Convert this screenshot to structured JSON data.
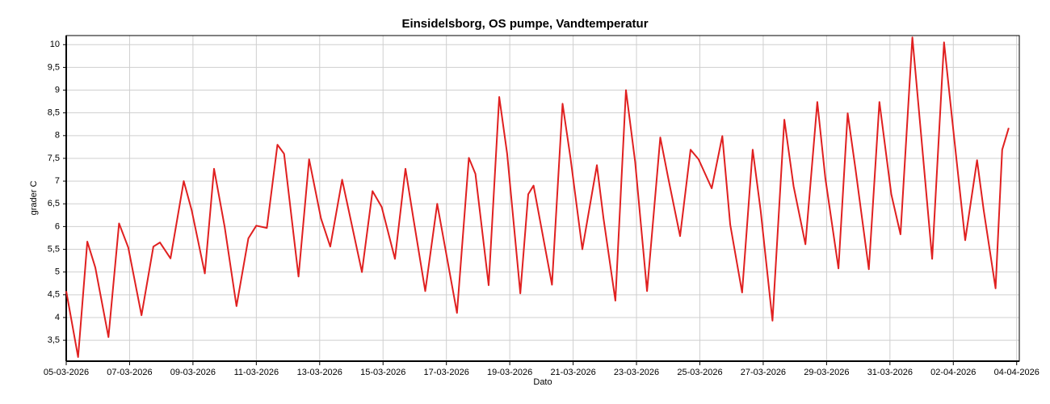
{
  "chart_data": {
    "type": "line",
    "title": "Einsidelsborg, OS pumpe, Vandtemperatur",
    "xlabel": "Dato",
    "ylabel": "grader C",
    "color": "#e02020",
    "grid": true,
    "x": [
      "2026-03-05T00:00",
      "2026-03-05T09:00",
      "2026-03-05T16:00",
      "2026-03-05T22:00",
      "2026-03-06T08:00",
      "2026-03-06T16:00",
      "2026-03-06T23:00",
      "2026-03-07T09:00",
      "2026-03-07T18:00",
      "2026-03-07T23:00",
      "2026-03-08T07:00",
      "2026-03-08T17:00",
      "2026-03-08T23:00",
      "2026-03-09T09:00",
      "2026-03-09T16:00",
      "2026-03-10T00:00",
      "2026-03-10T09:00",
      "2026-03-10T18:00",
      "2026-03-11T00:00",
      "2026-03-11T08:00",
      "2026-03-11T16:00",
      "2026-03-11T21:00",
      "2026-03-12T08:00",
      "2026-03-12T16:00",
      "2026-03-13T01:00",
      "2026-03-13T08:00",
      "2026-03-13T17:00",
      "2026-03-14T08:00",
      "2026-03-14T16:00",
      "2026-03-14T23:00",
      "2026-03-15T09:00",
      "2026-03-15T17:00",
      "2026-03-15T23:00",
      "2026-03-16T08:00",
      "2026-03-16T17:00",
      "2026-03-17T08:00",
      "2026-03-17T17:00",
      "2026-03-17T22:00",
      "2026-03-18T08:00",
      "2026-03-18T16:00",
      "2026-03-18T22:00",
      "2026-03-19T08:00",
      "2026-03-19T14:00",
      "2026-03-19T18:00",
      "2026-03-20T08:00",
      "2026-03-20T16:00",
      "2026-03-20T22:00",
      "2026-03-21T07:00",
      "2026-03-21T18:00",
      "2026-03-21T23:00",
      "2026-03-22T08:00",
      "2026-03-22T16:00",
      "2026-03-22T23:00",
      "2026-03-23T08:00",
      "2026-03-23T18:00",
      "2026-03-24T00:00",
      "2026-03-24T09:00",
      "2026-03-24T17:00",
      "2026-03-24T23:00",
      "2026-03-25T09:00",
      "2026-03-25T17:00",
      "2026-03-25T23:00",
      "2026-03-26T08:00",
      "2026-03-26T16:00",
      "2026-03-26T22:00",
      "2026-03-27T07:00",
      "2026-03-27T16:00",
      "2026-03-27T23:00",
      "2026-03-28T08:00",
      "2026-03-28T17:00",
      "2026-03-28T23:00",
      "2026-03-29T09:00",
      "2026-03-29T16:00",
      "2026-03-29T22:00",
      "2026-03-30T08:00",
      "2026-03-30T16:00",
      "2026-03-31T01:00",
      "2026-03-31T08:00",
      "2026-03-31T17:00",
      "2026-03-31T23:00",
      "2026-04-01T08:00",
      "2026-04-01T17:00",
      "2026-04-01T23:00",
      "2026-04-02T09:00",
      "2026-04-02T18:00",
      "2026-04-02T23:00",
      "2026-04-03T08:00",
      "2026-04-03T13:00",
      "2026-04-03T18:00"
    ],
    "values": [
      4.58,
      3.13,
      5.67,
      5.1,
      3.57,
      6.07,
      5.54,
      4.05,
      5.56,
      5.65,
      5.3,
      7.0,
      6.36,
      4.97,
      7.27,
      6.0,
      4.25,
      5.74,
      6.02,
      5.97,
      7.8,
      7.6,
      4.9,
      7.48,
      6.18,
      5.56,
      7.03,
      5.0,
      6.78,
      6.43,
      5.29,
      7.27,
      6.18,
      4.58,
      6.5,
      4.1,
      7.51,
      7.16,
      4.71,
      8.85,
      7.6,
      4.53,
      6.71,
      6.9,
      4.72,
      8.7,
      7.51,
      5.5,
      7.35,
      6.18,
      4.37,
      9.0,
      7.42,
      4.58,
      7.96,
      7.07,
      5.79,
      7.69,
      7.48,
      6.84,
      7.99,
      6.04,
      4.55,
      7.69,
      6.36,
      3.93,
      8.35,
      6.89,
      5.61,
      8.74,
      7.07,
      5.08,
      8.49,
      7.25,
      5.06,
      8.74,
      6.71,
      5.83,
      10.16,
      8.22,
      5.29,
      10.05,
      8.4,
      5.7,
      7.46,
      6.36,
      4.64,
      7.69,
      8.17
    ],
    "xlim": [
      "2026-03-05T00:00",
      "2026-04-04T02:00"
    ],
    "xticks": [
      {
        "value": "2026-03-05T00:00",
        "label": "05-03-2026"
      },
      {
        "value": "2026-03-07T00:00",
        "label": "07-03-2026"
      },
      {
        "value": "2026-03-09T00:00",
        "label": "09-03-2026"
      },
      {
        "value": "2026-03-11T00:00",
        "label": "11-03-2026"
      },
      {
        "value": "2026-03-13T00:00",
        "label": "13-03-2026"
      },
      {
        "value": "2026-03-15T00:00",
        "label": "15-03-2026"
      },
      {
        "value": "2026-03-17T00:00",
        "label": "17-03-2026"
      },
      {
        "value": "2026-03-19T00:00",
        "label": "19-03-2026"
      },
      {
        "value": "2026-03-21T00:00",
        "label": "21-03-2026"
      },
      {
        "value": "2026-03-23T00:00",
        "label": "23-03-2026"
      },
      {
        "value": "2026-03-25T00:00",
        "label": "25-03-2026"
      },
      {
        "value": "2026-03-27T00:00",
        "label": "27-03-2026"
      },
      {
        "value": "2026-03-29T00:00",
        "label": "29-03-2026"
      },
      {
        "value": "2026-03-31T00:00",
        "label": "31-03-2026"
      },
      {
        "value": "2026-04-02T00:00",
        "label": "02-04-2026"
      },
      {
        "value": "2026-04-04T00:00",
        "label": "04-04-2026"
      }
    ],
    "ylim": [
      3.04,
      10.2
    ],
    "yticks": [
      {
        "value": 3.5,
        "label": "3,5"
      },
      4,
      {
        "value": 4.5,
        "label": "4,5"
      },
      5,
      {
        "value": 5.5,
        "label": "5,5"
      },
      6,
      {
        "value": 6.5,
        "label": "6,5"
      },
      7,
      {
        "value": 7.5,
        "label": "7,5"
      },
      8,
      {
        "value": 8.5,
        "label": "8,5"
      },
      9,
      {
        "value": 9.5,
        "label": "9,5"
      },
      10
    ]
  }
}
